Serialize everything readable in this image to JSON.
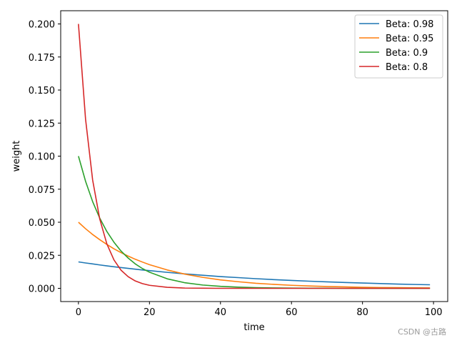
{
  "chart_data": {
    "type": "line",
    "title": "",
    "xlabel": "time",
    "ylabel": "weight",
    "xlim": [
      -5,
      104
    ],
    "ylim": [
      -0.01,
      0.21
    ],
    "x_ticks": [
      0,
      20,
      40,
      60,
      80,
      100
    ],
    "x_tick_labels": [
      "0",
      "20",
      "40",
      "60",
      "80",
      "100"
    ],
    "y_ticks": [
      0.0,
      0.025,
      0.05,
      0.075,
      0.1,
      0.125,
      0.15,
      0.175,
      0.2
    ],
    "y_tick_labels": [
      "0.000",
      "0.025",
      "0.050",
      "0.075",
      "0.100",
      "0.125",
      "0.150",
      "0.175",
      "0.200"
    ],
    "grid": false,
    "legend_position": "top-right",
    "x": [
      0,
      2,
      4,
      6,
      8,
      10,
      12,
      14,
      16,
      18,
      20,
      25,
      30,
      35,
      40,
      45,
      50,
      55,
      60,
      65,
      70,
      75,
      80,
      85,
      90,
      95,
      99
    ],
    "series": [
      {
        "name": "Beta: 0.98",
        "color": "#1f77b4",
        "values": [
          0.02,
          0.0192,
          0.0185,
          0.0177,
          0.017,
          0.0163,
          0.0157,
          0.0151,
          0.0145,
          0.0139,
          0.0134,
          0.0121,
          0.0109,
          0.0099,
          0.0089,
          0.0081,
          0.0073,
          0.0066,
          0.006,
          0.0054,
          0.0049,
          0.0044,
          0.004,
          0.0036,
          0.0032,
          0.0029,
          0.0027
        ]
      },
      {
        "name": "Beta: 0.95",
        "color": "#ff7f0e",
        "values": [
          0.05,
          0.0451,
          0.0407,
          0.0368,
          0.0332,
          0.0299,
          0.027,
          0.0244,
          0.022,
          0.0199,
          0.0179,
          0.0139,
          0.0107,
          0.0083,
          0.0064,
          0.005,
          0.0038,
          0.003,
          0.0023,
          0.0018,
          0.0014,
          0.0011,
          0.0008,
          0.0006,
          0.0005,
          0.0004,
          0.0003
        ]
      },
      {
        "name": "Beta: 0.9",
        "color": "#2ca02c",
        "values": [
          0.1,
          0.081,
          0.0656,
          0.0531,
          0.043,
          0.0349,
          0.0282,
          0.0229,
          0.0185,
          0.015,
          0.0122,
          0.0072,
          0.0042,
          0.0025,
          0.0015,
          0.0009,
          0.0005,
          0.0003,
          0.0002,
          0.0001,
          0.0001,
          0.0,
          0.0,
          0.0,
          0.0,
          0.0,
          0.0
        ]
      },
      {
        "name": "Beta: 0.8",
        "color": "#d62728",
        "values": [
          0.2,
          0.128,
          0.0819,
          0.0524,
          0.0336,
          0.0215,
          0.0137,
          0.0088,
          0.0056,
          0.0036,
          0.0023,
          0.0008,
          0.0002,
          0.0001,
          0.0,
          0.0,
          0.0,
          0.0,
          0.0,
          0.0,
          0.0,
          0.0,
          0.0,
          0.0,
          0.0,
          0.0,
          0.0
        ]
      }
    ]
  },
  "watermark": "CSDN @古路"
}
